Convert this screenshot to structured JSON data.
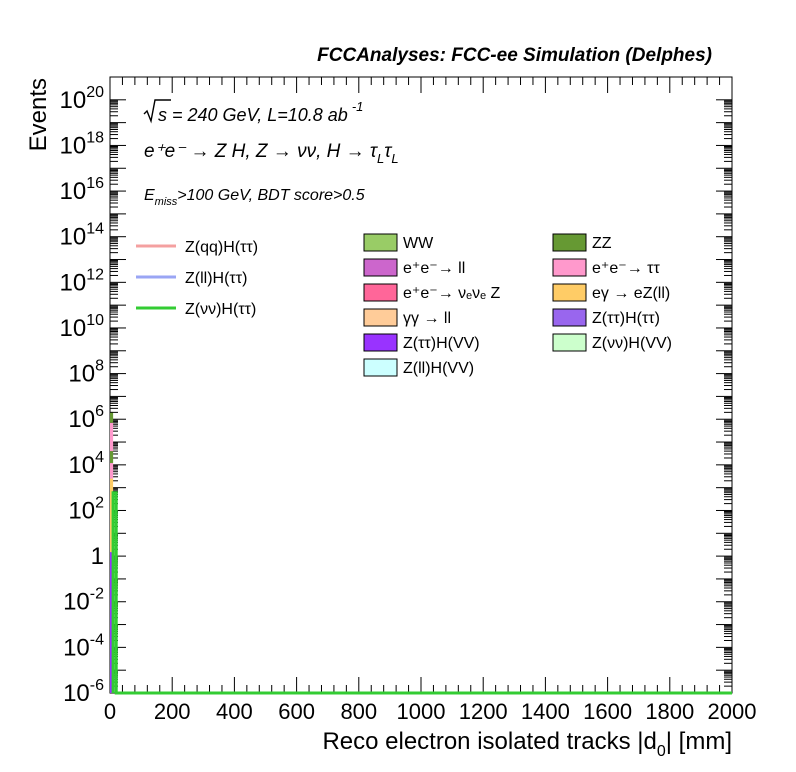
{
  "chart_data": {
    "type": "bar",
    "header": "FCCAnalyses: FCC-ee Simulation (Delphes)",
    "annotation_sqrt": "s",
    "annotation_energy": " = 240 GeV, L=10.8 ab",
    "annotation_lumi_exp": "-1",
    "annotation_process": "e⁺e⁻ → Z H, Z → νν, H → τ",
    "annotation_sub_L1": "L",
    "annotation_tau2": "τ",
    "annotation_sub_L2": "L",
    "annotation_cut_E": "E",
    "annotation_cut_sub": "miss",
    "annotation_cut_rest": ">100 GeV, BDT score>0.5",
    "xlabel_main": "Reco electron isolated tracks |d",
    "xlabel_sub": "0",
    "xlabel_end": "| [mm]",
    "ylabel": "Events",
    "xlim": [
      0,
      2000
    ],
    "ylim": [
      1e-06,
      1e+21
    ],
    "yscale": "log",
    "x_ticks": [
      "0",
      "200",
      "400",
      "600",
      "800",
      "1000",
      "1200",
      "1400",
      "1600",
      "1800",
      "2000"
    ],
    "y_ticks": [
      {
        "base": "10",
        "exp": "20",
        "value": 1e+20
      },
      {
        "base": "10",
        "exp": "18",
        "value": 1e+18
      },
      {
        "base": "10",
        "exp": "16",
        "value": 1e+16
      },
      {
        "base": "10",
        "exp": "14",
        "value": 100000000000000.0
      },
      {
        "base": "10",
        "exp": "12",
        "value": 1000000000000.0
      },
      {
        "base": "10",
        "exp": "10",
        "value": 10000000000.0
      },
      {
        "base": "10",
        "exp": "8",
        "value": 100000000.0
      },
      {
        "base": "10",
        "exp": "6",
        "value": 1000000.0
      },
      {
        "base": "10",
        "exp": "4",
        "value": 10000.0
      },
      {
        "base": "10",
        "exp": "2",
        "value": 100.0
      },
      {
        "base": "1",
        "exp": "",
        "value": 1
      },
      {
        "base": "10",
        "exp": "-2",
        "value": 0.01
      },
      {
        "base": "10",
        "exp": "-4",
        "value": 0.0001
      },
      {
        "base": "10",
        "exp": "-6",
        "value": 1e-06
      }
    ],
    "signal_legend": [
      {
        "name": "Z(qq)H(ττ)",
        "color": "#f4a0a0"
      },
      {
        "name": "Z(ll)H(ττ)",
        "color": "#9aa5f4"
      },
      {
        "name": "Z(νν)H(ττ)",
        "color": "#33cc33"
      }
    ],
    "background_legend": [
      {
        "name": "WW",
        "color": "#99cc66"
      },
      {
        "name": "ZZ",
        "color": "#669933"
      },
      {
        "name": "e⁺e⁻→ ll",
        "color": "#cc66cc"
      },
      {
        "name": "e⁺e⁻→ ττ",
        "color": "#ff99cc"
      },
      {
        "name": "e⁺e⁻→ νₑνₑ Z",
        "color": "#ff6699"
      },
      {
        "name": "eγ → eZ(ll)",
        "color": "#ffcc66"
      },
      {
        "name": "γγ → ll",
        "color": "#ffcc99"
      },
      {
        "name": "Z(ττ)H(ττ)",
        "color": "#9966ee"
      },
      {
        "name": "Z(ττ)H(VV)",
        "color": "#9933ff"
      },
      {
        "name": "Z(νν)H(VV)",
        "color": "#ccffcc"
      },
      {
        "name": "Z(ll)H(VV)",
        "color": "#ccffff"
      }
    ],
    "stack_first_bin": {
      "x_range": [
        0,
        10
      ],
      "segments": [
        {
          "color": "#9933ff",
          "low": 1e-06,
          "high": 1.5
        },
        {
          "color": "#ffcc66",
          "low": 1.5,
          "high": 2500
        },
        {
          "color": "#ff99cc",
          "low": 2500,
          "high": 12000
        },
        {
          "color": "#669933",
          "low": 12000,
          "high": 40000
        },
        {
          "color": "#ff99cc",
          "low": 40000,
          "high": 700000
        },
        {
          "color": "#669933",
          "low": 700000,
          "high": 2000000
        }
      ]
    },
    "signal_line": {
      "name": "Z(νν)H(ττ)",
      "x_range": [
        10,
        20
      ],
      "value": 600,
      "baseline_value": 1e-06
    }
  }
}
